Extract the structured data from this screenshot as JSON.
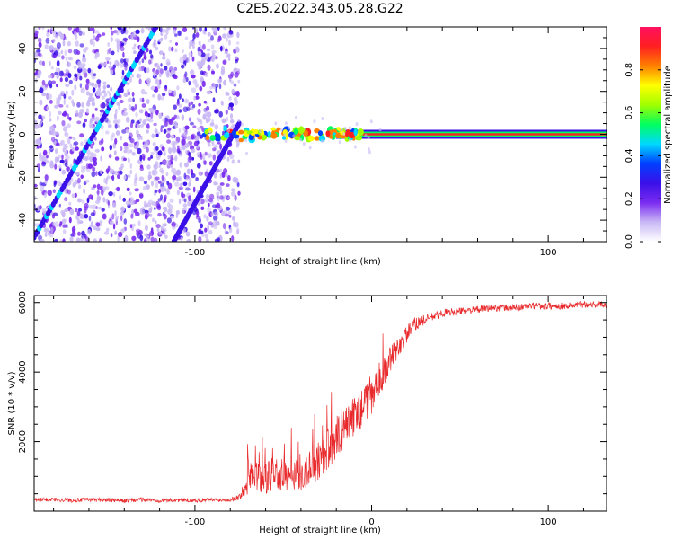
{
  "title": "C2E5.2022.343.05.28.G22",
  "chart_data": [
    {
      "type": "heatmap",
      "xlabel": "Height of straight line (km)",
      "ylabel": "Frequency (Hz)",
      "xlim": [
        -191,
        133
      ],
      "ylim": [
        -50,
        50
      ],
      "xticks": [
        -100,
        100
      ],
      "xtick_labels": [
        "-100",
        "100"
      ],
      "yticks": [
        -40,
        -20,
        0,
        20,
        40
      ],
      "ytick_labels": [
        "-40",
        "-20",
        "0",
        "20",
        "40"
      ],
      "colorbar": {
        "label": "Normalized spectral amplitude",
        "range": [
          0,
          1
        ],
        "ticks": [
          0.0,
          0.2,
          0.4,
          0.6,
          0.8
        ],
        "tick_labels": [
          "0.0",
          "0.2",
          "0.4",
          "0.6",
          "0.8"
        ],
        "colors": [
          "#ffffff",
          "#c9b8f5",
          "#7a2cf0",
          "#3a10e8",
          "#0040ff",
          "#00d8ff",
          "#00ff60",
          "#a0ff00",
          "#ffff00",
          "#ff8000",
          "#ff2020",
          "#ff1060"
        ]
      },
      "features": {
        "noise_region_x": [
          -191,
          -75
        ],
        "carrier_line": {
          "frequency": 0,
          "x_start": -95,
          "x_end": 133
        },
        "diagonal_traces": [
          {
            "x_start": -191,
            "y_start": -48,
            "x_end": -122,
            "y_end": 50
          },
          {
            "x_start": -112,
            "y_start": -50,
            "x_end": -75,
            "y_end": 5
          }
        ]
      }
    },
    {
      "type": "line",
      "xlabel": "Height of straight line (km)",
      "ylabel": "SNR (10 * v/v)",
      "xlim": [
        -191,
        133
      ],
      "ylim": [
        0,
        6200
      ],
      "xticks": [
        -100,
        0,
        100
      ],
      "xtick_labels": [
        "-100",
        "0",
        "100"
      ],
      "yticks": [
        2000,
        4000,
        6000
      ],
      "ytick_labels": [
        "2000",
        "4000",
        "6000"
      ],
      "series": [
        {
          "color": "#e8282a",
          "x": [
            -191,
            -180,
            -170,
            -160,
            -150,
            -140,
            -130,
            -120,
            -110,
            -100,
            -90,
            -80,
            -75,
            -70,
            -65,
            -60,
            -55,
            -50,
            -45,
            -40,
            -35,
            -30,
            -25,
            -20,
            -15,
            -10,
            -5,
            0,
            5,
            10,
            15,
            20,
            25,
            30,
            35,
            40,
            50,
            60,
            70,
            80,
            90,
            100,
            110,
            120,
            133
          ],
          "y": [
            320,
            340,
            310,
            330,
            320,
            300,
            330,
            310,
            320,
            310,
            320,
            330,
            400,
            900,
            1000,
            900,
            1100,
            1000,
            1200,
            1000,
            1300,
            1500,
            1800,
            2100,
            2500,
            2700,
            3000,
            3300,
            3800,
            4300,
            4700,
            5100,
            5400,
            5500,
            5600,
            5700,
            5750,
            5800,
            5850,
            5850,
            5900,
            5900,
            5900,
            5950,
            5950
          ],
          "noise": [
            120,
            120,
            120,
            120,
            120,
            120,
            120,
            120,
            120,
            120,
            120,
            120,
            200,
            900,
            900,
            900,
            1000,
            1000,
            1100,
            1000,
            1100,
            1200,
            1200,
            1200,
            1300,
            1200,
            1100,
            1000,
            900,
            800,
            600,
            500,
            400,
            300,
            250,
            250,
            200,
            200,
            200,
            200,
            200,
            200,
            200,
            200,
            200
          ]
        }
      ]
    }
  ]
}
